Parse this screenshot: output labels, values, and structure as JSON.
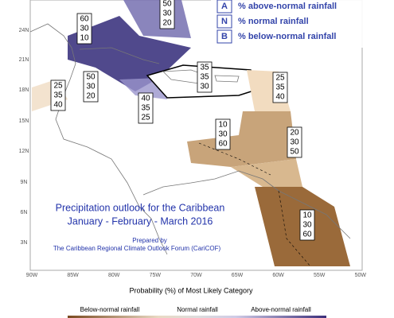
{
  "legend": {
    "items": [
      {
        "key": "A",
        "label": "% above-normal rainfall"
      },
      {
        "key": "N",
        "label": "% normal rainfall"
      },
      {
        "key": "B",
        "label": "% below-normal rainfall"
      }
    ]
  },
  "lat_labels": [
    "24N",
    "21N",
    "18N",
    "15N",
    "12N",
    "9N",
    "6N",
    "3N"
  ],
  "lon_labels": [
    "90W",
    "85W",
    "80W",
    "75W",
    "70W",
    "65W",
    "60W",
    "55W",
    "50W"
  ],
  "title": {
    "line1": "Precipitation outlook for the Caribbean",
    "line2": "January - February - March 2016",
    "prepared": "Prepared by",
    "forum": "The Caribbean Regional Climate Outlook Forum (CariCOF)"
  },
  "regions": [
    [
      50,
      30,
      20
    ],
    [
      60,
      30,
      10
    ],
    [
      25,
      35,
      40
    ],
    [
      50,
      30,
      20
    ],
    [
      40,
      35,
      25
    ],
    [
      35,
      35,
      30
    ],
    [
      25,
      35,
      40
    ],
    [
      10,
      30,
      60
    ],
    [
      20,
      30,
      50
    ],
    [
      10,
      30,
      60
    ]
  ],
  "colorbar": {
    "title": "Probability (%) of Most Likely Category",
    "below": "Below-normal rainfall",
    "normal": "Normal rainfall",
    "above": "Above-normal rainfall"
  }
}
